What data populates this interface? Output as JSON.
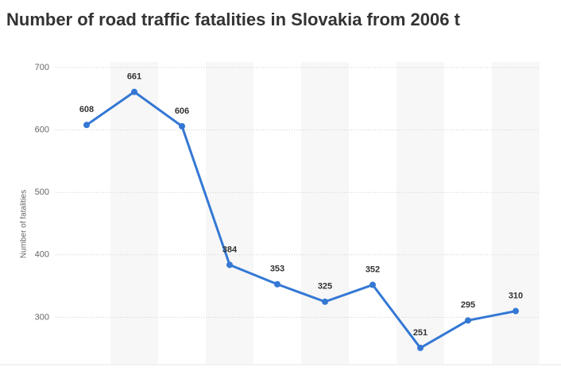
{
  "chart_data": {
    "type": "line",
    "title": "Number of road traffic fatalities in Slovakia from 2006 t",
    "y_label": "Number of fatalities",
    "categories": [
      null,
      null,
      null,
      null,
      null,
      null,
      null,
      null,
      null,
      null
    ],
    "series": [
      {
        "name": null,
        "color": "#3478d4",
        "values": [
          608,
          661,
          606,
          384,
          353,
          325,
          352,
          251,
          295,
          310
        ]
      }
    ],
    "ylim": [
      225,
      700
    ],
    "yticks": [
      300,
      400,
      500,
      600,
      700
    ],
    "grid": true
  }
}
